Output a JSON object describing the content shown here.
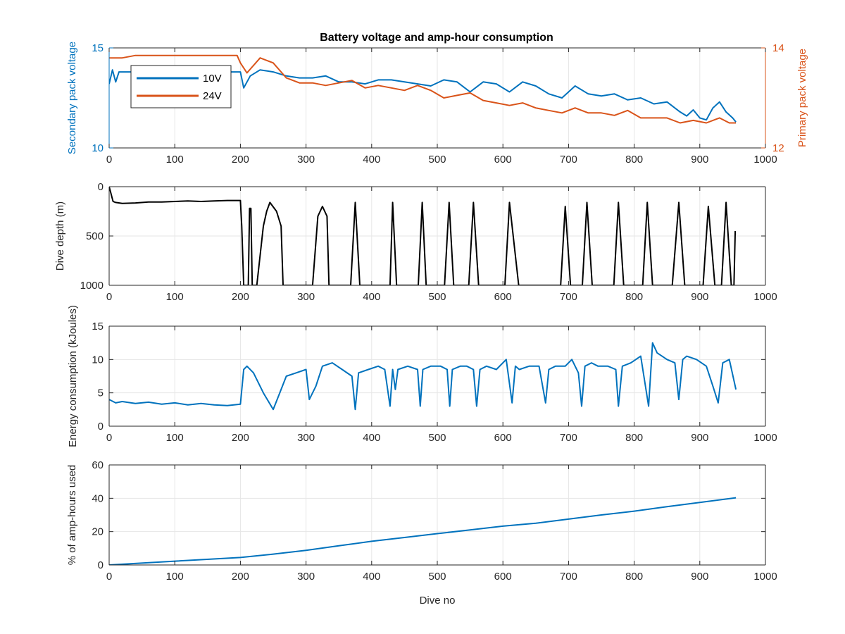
{
  "figure_title": "Battery voltage and amp-hour consumption",
  "colors": {
    "blue": "#0072bd",
    "orange": "#d95319",
    "black": "#000000",
    "grid": "#e6e6e6",
    "axis": "#262626"
  },
  "chart_data": [
    {
      "type": "line",
      "title": "Battery voltage and amp-hour consumption",
      "xlabel": "",
      "ylabel": "Secondary pack voltage",
      "ylabel_right": "Primary pack voltage",
      "xlim": [
        0,
        1000
      ],
      "ylim": [
        10,
        15
      ],
      "ylim_right": [
        12,
        14
      ],
      "xticks": [
        0,
        100,
        200,
        300,
        400,
        500,
        600,
        700,
        800,
        900,
        1000
      ],
      "yticks": [
        10,
        15
      ],
      "yticks_right": [
        12,
        14
      ],
      "grid": true,
      "legend": {
        "placement": "top-left",
        "entries": [
          "10V",
          "24V"
        ]
      },
      "series": [
        {
          "name": "10V",
          "axis": "left",
          "color": "#0072bd",
          "x": [
            0,
            5,
            10,
            15,
            20,
            30,
            40,
            60,
            80,
            100,
            120,
            140,
            160,
            180,
            195,
            200,
            205,
            215,
            230,
            250,
            270,
            290,
            310,
            330,
            350,
            370,
            390,
            410,
            430,
            450,
            470,
            490,
            510,
            530,
            550,
            570,
            590,
            610,
            630,
            650,
            670,
            690,
            710,
            730,
            750,
            770,
            790,
            810,
            830,
            850,
            870,
            880,
            890,
            900,
            910,
            920,
            930,
            940,
            950,
            955
          ],
          "y": [
            13.2,
            13.9,
            13.3,
            13.8,
            13.8,
            13.8,
            13.8,
            13.8,
            13.8,
            13.8,
            13.8,
            13.8,
            13.8,
            13.8,
            13.8,
            13.8,
            13.0,
            13.6,
            13.9,
            13.8,
            13.6,
            13.5,
            13.5,
            13.6,
            13.3,
            13.3,
            13.2,
            13.4,
            13.4,
            13.3,
            13.2,
            13.1,
            13.4,
            13.3,
            12.8,
            13.3,
            13.2,
            12.8,
            13.3,
            13.1,
            12.7,
            12.5,
            13.1,
            12.7,
            12.6,
            12.7,
            12.4,
            12.5,
            12.2,
            12.3,
            11.8,
            11.6,
            11.9,
            11.5,
            11.4,
            12.0,
            12.3,
            11.8,
            11.5,
            11.3
          ]
        },
        {
          "name": "24V",
          "axis": "right",
          "color": "#d95319",
          "x": [
            0,
            5,
            10,
            20,
            40,
            60,
            80,
            100,
            120,
            140,
            160,
            180,
            195,
            200,
            210,
            230,
            250,
            270,
            290,
            310,
            330,
            350,
            370,
            390,
            410,
            430,
            450,
            470,
            490,
            510,
            530,
            550,
            570,
            590,
            610,
            630,
            650,
            670,
            690,
            710,
            730,
            750,
            770,
            790,
            810,
            830,
            850,
            870,
            890,
            910,
            930,
            945,
            955
          ],
          "y": [
            13.8,
            13.8,
            13.8,
            13.8,
            13.85,
            13.85,
            13.85,
            13.85,
            13.85,
            13.85,
            13.85,
            13.85,
            13.85,
            13.7,
            13.5,
            13.8,
            13.7,
            13.4,
            13.3,
            13.3,
            13.25,
            13.3,
            13.35,
            13.2,
            13.25,
            13.2,
            13.15,
            13.25,
            13.15,
            13.0,
            13.05,
            13.1,
            12.95,
            12.9,
            12.85,
            12.9,
            12.8,
            12.75,
            12.7,
            12.8,
            12.7,
            12.7,
            12.65,
            12.75,
            12.6,
            12.6,
            12.6,
            12.5,
            12.55,
            12.5,
            12.6,
            12.5,
            12.5
          ]
        }
      ]
    },
    {
      "type": "line",
      "title": "",
      "xlabel": "",
      "ylabel": "Dive depth (m)",
      "xlim": [
        0,
        1000
      ],
      "ylim": [
        0,
        1000
      ],
      "y_reversed": true,
      "xticks": [
        0,
        100,
        200,
        300,
        400,
        500,
        600,
        700,
        800,
        900,
        1000
      ],
      "yticks": [
        0,
        500,
        1000
      ],
      "grid": true,
      "series": [
        {
          "name": "",
          "color": "#000000",
          "x": [
            0,
            2,
            4,
            6,
            10,
            20,
            40,
            60,
            80,
            100,
            120,
            140,
            160,
            180,
            195,
            200,
            202,
            205,
            208,
            212,
            214,
            216,
            218,
            225,
            235,
            240,
            245,
            255,
            262,
            265,
            275,
            290,
            300,
            305,
            310,
            318,
            325,
            332,
            335,
            350,
            365,
            368,
            375,
            382,
            385,
            395,
            410,
            425,
            428,
            432,
            438,
            441,
            455,
            468,
            471,
            477,
            483,
            486,
            500,
            508,
            511,
            518,
            525,
            528,
            545,
            548,
            555,
            563,
            566,
            575,
            600,
            603,
            610,
            624,
            628,
            650,
            680,
            685,
            688,
            695,
            703,
            706,
            718,
            721,
            728,
            736,
            739,
            755,
            766,
            769,
            776,
            784,
            787,
            810,
            813,
            820,
            828,
            830,
            855,
            858,
            868,
            877,
            880,
            905,
            913,
            923,
            933,
            940,
            948,
            950,
            952,
            954
          ],
          "y": [
            0,
            50,
            100,
            150,
            160,
            170,
            165,
            155,
            155,
            150,
            145,
            150,
            145,
            140,
            140,
            140,
            400,
            1000,
            1000,
            1000,
            220,
            220,
            1000,
            1000,
            400,
            250,
            160,
            250,
            400,
            1000,
            1000,
            1000,
            1000,
            1000,
            1000,
            300,
            200,
            300,
            1000,
            1000,
            1000,
            1000,
            160,
            1000,
            1000,
            1000,
            1000,
            1000,
            1000,
            160,
            1000,
            1000,
            1000,
            1000,
            1000,
            160,
            1000,
            1000,
            1000,
            1000,
            1000,
            160,
            1000,
            1000,
            1000,
            1000,
            160,
            1000,
            1000,
            1000,
            1000,
            1000,
            160,
            1000,
            1000,
            1000,
            1000,
            1000,
            1000,
            200,
            1000,
            1000,
            1000,
            1000,
            160,
            1000,
            1000,
            1000,
            1000,
            1000,
            160,
            1000,
            1000,
            1000,
            1000,
            160,
            1000,
            1000,
            1000,
            1000,
            160,
            1000,
            1000,
            1000,
            200,
            1000,
            1000,
            160,
            1000,
            1000,
            1000,
            450
          ]
        }
      ]
    },
    {
      "type": "line",
      "title": "",
      "xlabel": "",
      "ylabel": "Energy consumption (kJoules)",
      "xlim": [
        0,
        1000
      ],
      "ylim": [
        0,
        15
      ],
      "xticks": [
        0,
        100,
        200,
        300,
        400,
        500,
        600,
        700,
        800,
        900,
        1000
      ],
      "yticks": [
        0,
        5,
        10,
        15
      ],
      "grid": true,
      "series": [
        {
          "name": "",
          "color": "#0072bd",
          "x": [
            0,
            10,
            20,
            40,
            60,
            80,
            100,
            120,
            140,
            160,
            180,
            200,
            205,
            210,
            220,
            235,
            250,
            260,
            270,
            285,
            300,
            305,
            315,
            325,
            340,
            355,
            370,
            375,
            380,
            395,
            410,
            420,
            428,
            432,
            436,
            440,
            455,
            470,
            474,
            478,
            490,
            505,
            515,
            519,
            523,
            535,
            545,
            555,
            560,
            565,
            575,
            590,
            605,
            614,
            619,
            625,
            640,
            655,
            665,
            670,
            680,
            695,
            705,
            715,
            720,
            725,
            735,
            745,
            760,
            772,
            776,
            782,
            795,
            810,
            822,
            828,
            835,
            850,
            862,
            868,
            874,
            880,
            895,
            910,
            920,
            928,
            935,
            945,
            955
          ],
          "y": [
            4,
            3.5,
            3.7,
            3.4,
            3.6,
            3.3,
            3.5,
            3.2,
            3.4,
            3.2,
            3.1,
            3.3,
            8.5,
            9.0,
            8.0,
            5.0,
            2.5,
            5.0,
            7.5,
            8.0,
            8.5,
            4.0,
            6.0,
            9.0,
            9.5,
            8.5,
            7.5,
            2.5,
            8.0,
            8.5,
            9.0,
            8.5,
            3.0,
            8.5,
            5.5,
            8.5,
            9.0,
            8.5,
            3.0,
            8.5,
            9.0,
            9.0,
            8.5,
            3.0,
            8.5,
            9.0,
            9.0,
            8.5,
            3.0,
            8.5,
            9.0,
            8.5,
            10.0,
            3.5,
            9.0,
            8.5,
            9.0,
            9.0,
            3.5,
            8.5,
            9.0,
            9.0,
            10.0,
            8.0,
            3.0,
            9.0,
            9.5,
            9.0,
            9.0,
            8.5,
            3.0,
            9.0,
            9.5,
            10.5,
            3.0,
            12.5,
            11.0,
            10.0,
            9.5,
            4.0,
            10.0,
            10.5,
            10.0,
            9.0,
            6.0,
            3.5,
            9.5,
            10.0,
            5.5
          ]
        }
      ]
    },
    {
      "type": "line",
      "title": "",
      "xlabel": "Dive no",
      "ylabel": "% of amp-hours used",
      "xlim": [
        0,
        1000
      ],
      "ylim": [
        0,
        60
      ],
      "xticks": [
        0,
        100,
        200,
        300,
        400,
        500,
        600,
        700,
        800,
        900,
        1000
      ],
      "yticks": [
        0,
        20,
        40,
        60
      ],
      "grid": true,
      "series": [
        {
          "name": "",
          "color": "#0072bd",
          "x": [
            0,
            100,
            200,
            250,
            300,
            350,
            400,
            450,
            500,
            550,
            600,
            650,
            700,
            750,
            800,
            850,
            900,
            955
          ],
          "y": [
            0,
            2.3,
            4.5,
            6.5,
            8.8,
            11.5,
            14.2,
            16.5,
            18.8,
            21.0,
            23.3,
            25.0,
            27.5,
            30.0,
            32.3,
            35.0,
            37.5,
            40.3
          ]
        }
      ]
    }
  ]
}
